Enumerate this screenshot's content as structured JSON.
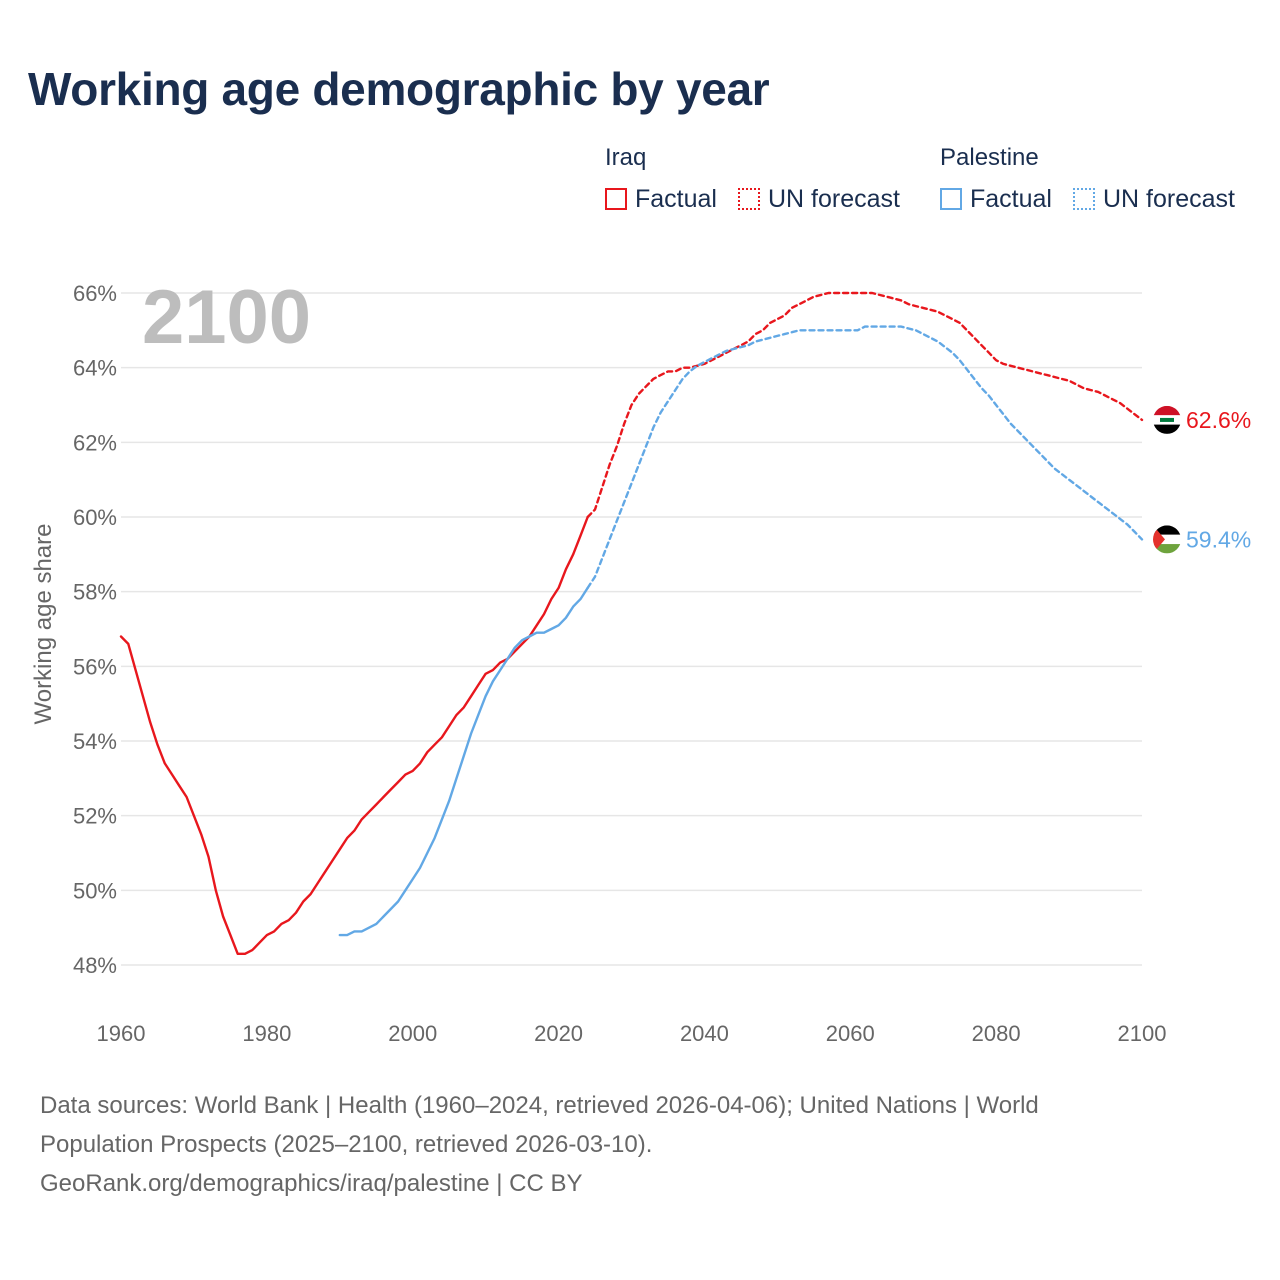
{
  "title": "Working age demographic by year",
  "legend": {
    "groups": [
      {
        "name": "Iraq",
        "color": "#e8171d",
        "factual_label": "Factual",
        "forecast_label": "UN forecast"
      },
      {
        "name": "Palestine",
        "color": "#62a8e5",
        "factual_label": "Factual",
        "forecast_label": "UN forecast"
      }
    ]
  },
  "year_watermark": "2100",
  "footer": {
    "line1": "Data sources: World Bank | Health (1960–2024, retrieved 2026-04-06); United Nations | World",
    "line2": "Population Prospects (2025–2100, retrieved 2026-03-10).",
    "line3": "GeoRank.org/demographics/iraq/palestine | CC BY"
  },
  "chart_data": {
    "type": "line",
    "title": "Working age demographic by year",
    "xlabel": "",
    "ylabel": "Working age share",
    "xlim": [
      1960,
      2100
    ],
    "ylim": [
      47.5,
      66.3
    ],
    "x_ticks": [
      1960,
      1980,
      2000,
      2020,
      2040,
      2060,
      2080,
      2100
    ],
    "x_tick_labels": [
      "1960",
      "1980",
      "2000",
      "2020",
      "2040",
      "2060",
      "2080",
      "2100"
    ],
    "y_ticks": [
      48,
      50,
      52,
      54,
      56,
      58,
      60,
      62,
      64,
      66
    ],
    "y_tick_labels": [
      "48%",
      "50%",
      "52%",
      "54%",
      "56%",
      "58%",
      "60%",
      "62%",
      "64%",
      "66%"
    ],
    "grid": true,
    "series": [
      {
        "name": "Iraq",
        "kind": "factual",
        "color": "#e8171d",
        "x": [
          1960,
          1961,
          1962,
          1963,
          1964,
          1965,
          1966,
          1967,
          1968,
          1969,
          1970,
          1971,
          1972,
          1973,
          1974,
          1975,
          1976,
          1977,
          1978,
          1979,
          1980,
          1981,
          1982,
          1983,
          1984,
          1985,
          1986,
          1987,
          1988,
          1989,
          1990,
          1991,
          1992,
          1993,
          1994,
          1995,
          1996,
          1997,
          1998,
          1999,
          2000,
          2001,
          2002,
          2003,
          2004,
          2005,
          2006,
          2007,
          2008,
          2009,
          2010,
          2011,
          2012,
          2013,
          2014,
          2015,
          2016,
          2017,
          2018,
          2019,
          2020,
          2021,
          2022,
          2023,
          2024
        ],
        "y": [
          56.8,
          56.6,
          55.9,
          55.2,
          54.5,
          53.9,
          53.4,
          53.1,
          52.8,
          52.5,
          52.0,
          51.5,
          50.9,
          50.0,
          49.3,
          48.8,
          48.3,
          48.3,
          48.4,
          48.6,
          48.8,
          48.9,
          49.1,
          49.2,
          49.4,
          49.7,
          49.9,
          50.2,
          50.5,
          50.8,
          51.1,
          51.4,
          51.6,
          51.9,
          52.1,
          52.3,
          52.5,
          52.7,
          52.9,
          53.1,
          53.2,
          53.4,
          53.7,
          53.9,
          54.1,
          54.4,
          54.7,
          54.9,
          55.2,
          55.5,
          55.8,
          55.9,
          56.1,
          56.2,
          56.4,
          56.6,
          56.8,
          57.1,
          57.4,
          57.8,
          58.1,
          58.6,
          59.0,
          59.5,
          60.0
        ]
      },
      {
        "name": "Iraq",
        "kind": "forecast",
        "color": "#e8171d",
        "x": [
          2024,
          2025,
          2026,
          2027,
          2028,
          2029,
          2030,
          2031,
          2032,
          2033,
          2034,
          2035,
          2036,
          2037,
          2038,
          2039,
          2040,
          2041,
          2042,
          2043,
          2044,
          2045,
          2046,
          2047,
          2048,
          2049,
          2050,
          2051,
          2052,
          2053,
          2054,
          2055,
          2056,
          2057,
          2058,
          2059,
          2060,
          2061,
          2062,
          2063,
          2064,
          2065,
          2066,
          2067,
          2068,
          2069,
          2070,
          2071,
          2072,
          2073,
          2074,
          2075,
          2076,
          2077,
          2078,
          2079,
          2080,
          2081,
          2082,
          2083,
          2084,
          2085,
          2086,
          2087,
          2088,
          2089,
          2090,
          2091,
          2092,
          2093,
          2094,
          2095,
          2096,
          2097,
          2098,
          2099,
          2100
        ],
        "y": [
          60.0,
          60.2,
          60.8,
          61.4,
          61.9,
          62.5,
          63.0,
          63.3,
          63.5,
          63.7,
          63.8,
          63.9,
          63.9,
          64.0,
          64.0,
          64.05,
          64.1,
          64.2,
          64.3,
          64.4,
          64.5,
          64.6,
          64.7,
          64.9,
          65.0,
          65.2,
          65.3,
          65.4,
          65.6,
          65.7,
          65.8,
          65.9,
          65.95,
          66.0,
          66.0,
          66.0,
          66.0,
          66.0,
          66.0,
          66.0,
          65.95,
          65.9,
          65.85,
          65.8,
          65.7,
          65.65,
          65.6,
          65.55,
          65.5,
          65.4,
          65.3,
          65.2,
          65.0,
          64.8,
          64.6,
          64.4,
          64.2,
          64.1,
          64.05,
          64.0,
          63.95,
          63.9,
          63.85,
          63.8,
          63.75,
          63.7,
          63.65,
          63.55,
          63.45,
          63.4,
          63.35,
          63.25,
          63.15,
          63.05,
          62.9,
          62.75,
          62.6
        ]
      },
      {
        "name": "Palestine",
        "kind": "factual",
        "color": "#62a8e5",
        "x": [
          1990,
          1991,
          1992,
          1993,
          1994,
          1995,
          1996,
          1997,
          1998,
          1999,
          2000,
          2001,
          2002,
          2003,
          2004,
          2005,
          2006,
          2007,
          2008,
          2009,
          2010,
          2011,
          2012,
          2013,
          2014,
          2015,
          2016,
          2017,
          2018,
          2019,
          2020,
          2021,
          2022,
          2023,
          2024
        ],
        "y": [
          48.8,
          48.8,
          48.9,
          48.9,
          49.0,
          49.1,
          49.3,
          49.5,
          49.7,
          50.0,
          50.3,
          50.6,
          51.0,
          51.4,
          51.9,
          52.4,
          53.0,
          53.6,
          54.2,
          54.7,
          55.2,
          55.6,
          55.9,
          56.2,
          56.5,
          56.7,
          56.8,
          56.9,
          56.9,
          57.0,
          57.1,
          57.3,
          57.6,
          57.8,
          58.1
        ]
      },
      {
        "name": "Palestine",
        "kind": "forecast",
        "color": "#62a8e5",
        "x": [
          2024,
          2025,
          2026,
          2027,
          2028,
          2029,
          2030,
          2031,
          2032,
          2033,
          2034,
          2035,
          2036,
          2037,
          2038,
          2039,
          2040,
          2041,
          2042,
          2043,
          2044,
          2045,
          2046,
          2047,
          2048,
          2049,
          2050,
          2051,
          2052,
          2053,
          2054,
          2055,
          2056,
          2057,
          2058,
          2059,
          2060,
          2061,
          2062,
          2063,
          2064,
          2065,
          2066,
          2067,
          2068,
          2069,
          2070,
          2071,
          2072,
          2073,
          2074,
          2075,
          2076,
          2077,
          2078,
          2079,
          2080,
          2081,
          2082,
          2083,
          2084,
          2085,
          2086,
          2087,
          2088,
          2089,
          2090,
          2091,
          2092,
          2093,
          2094,
          2095,
          2096,
          2097,
          2098,
          2099,
          2100
        ],
        "y": [
          58.1,
          58.4,
          58.9,
          59.4,
          59.9,
          60.4,
          60.9,
          61.4,
          61.9,
          62.4,
          62.8,
          63.1,
          63.4,
          63.7,
          63.9,
          64.05,
          64.15,
          64.25,
          64.35,
          64.45,
          64.5,
          64.55,
          64.6,
          64.7,
          64.75,
          64.8,
          64.85,
          64.9,
          64.95,
          65.0,
          65.0,
          65.0,
          65.0,
          65.0,
          65.0,
          65.0,
          65.0,
          65.0,
          65.1,
          65.1,
          65.1,
          65.1,
          65.1,
          65.1,
          65.05,
          65.0,
          64.9,
          64.8,
          64.7,
          64.55,
          64.4,
          64.2,
          63.95,
          63.7,
          63.45,
          63.25,
          63.0,
          62.75,
          62.5,
          62.3,
          62.1,
          61.9,
          61.7,
          61.5,
          61.3,
          61.15,
          61.0,
          60.85,
          60.7,
          60.55,
          60.4,
          60.25,
          60.1,
          59.95,
          59.8,
          59.6,
          59.4
        ]
      }
    ],
    "end_labels": [
      {
        "name": "Iraq",
        "text": "62.6%",
        "value": 62.6,
        "color": "#e8171d",
        "flag": "iraq"
      },
      {
        "name": "Palestine",
        "text": "59.4%",
        "value": 59.4,
        "color": "#62a8e5",
        "flag": "palestine"
      }
    ]
  }
}
